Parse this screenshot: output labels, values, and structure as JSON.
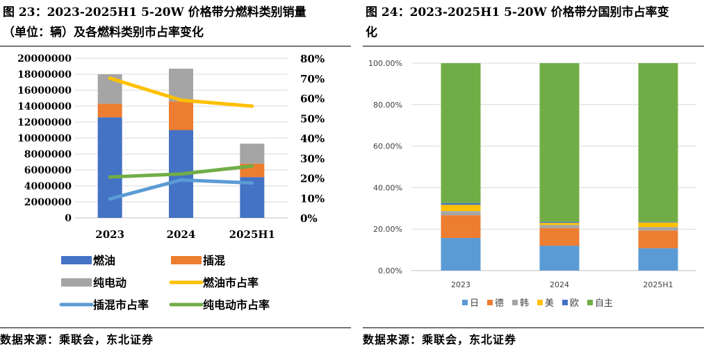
{
  "left": {
    "title_line1": "图 23：2023-2025H1 5-20W 价格带分燃料类别销量",
    "title_line2": "（单位：辆）及各燃料类别市占率变化",
    "source": "数据来源：乘联会，东北证券"
  },
  "right": {
    "title_line1": "图 24：2023-2025H1 5-20W 价格带分国别市占率变",
    "title_line2": "化",
    "source": "数据来源：乘联会，东北证券"
  },
  "colors": {
    "fuel_oil": "#4472C4",
    "phev": "#ED7D31",
    "bev": "#A5A5A5",
    "fuel_oil_share": "#FFC000",
    "phev_share": "#5B9BD5",
    "bev_share": "#70AD47",
    "japan": "#5B9BD5",
    "germany": "#ED7D31",
    "korea": "#A5A5A5",
    "usa": "#FFC000",
    "europe": "#4472C4",
    "domestic": "#70AD47"
  },
  "chart_data": [
    {
      "type": "bar",
      "stacked": true,
      "secondary_axis": "line",
      "categories": [
        "2023",
        "2024",
        "2025H1"
      ],
      "series": [
        {
          "name": "燃油",
          "kind": "bar",
          "values": [
            12600000,
            11000000,
            5100000
          ]
        },
        {
          "name": "插混",
          "kind": "bar",
          "values": [
            1700000,
            3600000,
            1700000
          ]
        },
        {
          "name": "纯电动",
          "kind": "bar",
          "values": [
            3700000,
            4100000,
            2500000
          ]
        },
        {
          "name": "燃油市占率",
          "kind": "line",
          "axis": "right",
          "values": [
            0.7,
            0.59,
            0.56
          ]
        },
        {
          "name": "插混市占率",
          "kind": "line",
          "axis": "right",
          "values": [
            0.095,
            0.19,
            0.175
          ]
        },
        {
          "name": "纯电动市占率",
          "kind": "line",
          "axis": "right",
          "values": [
            0.205,
            0.22,
            0.26
          ]
        }
      ],
      "ylim": [
        0,
        20000000
      ],
      "yticks": [
        "20000000",
        "18000000",
        "16000000",
        "14000000",
        "12000000",
        "10000000",
        "8000000",
        "6000000",
        "4000000",
        "2000000",
        "0"
      ],
      "y2lim": [
        0,
        0.8
      ],
      "y2ticks": [
        "80%",
        "70%",
        "60%",
        "50%",
        "40%",
        "30%",
        "20%",
        "10%",
        "0%"
      ],
      "grid": true,
      "legend": "bottom"
    },
    {
      "type": "bar",
      "stacked": true,
      "categories": [
        "2023",
        "2024",
        "2025H1"
      ],
      "series": [
        {
          "name": "日",
          "values": [
            0.157,
            0.12,
            0.108
          ]
        },
        {
          "name": "德",
          "values": [
            0.11,
            0.085,
            0.085
          ]
        },
        {
          "name": "韩",
          "values": [
            0.02,
            0.015,
            0.017
          ]
        },
        {
          "name": "美",
          "values": [
            0.03,
            0.01,
            0.022
          ]
        },
        {
          "name": "欧",
          "values": [
            0.008,
            0.005,
            0.003
          ]
        },
        {
          "name": "自主",
          "values": [
            0.675,
            0.765,
            0.765
          ]
        }
      ],
      "ylim": [
        0,
        1
      ],
      "yticks": [
        "100.00%",
        "80.00%",
        "60.00%",
        "40.00%",
        "20.00%",
        "0.00%"
      ],
      "grid": true,
      "legend": "bottom"
    }
  ]
}
